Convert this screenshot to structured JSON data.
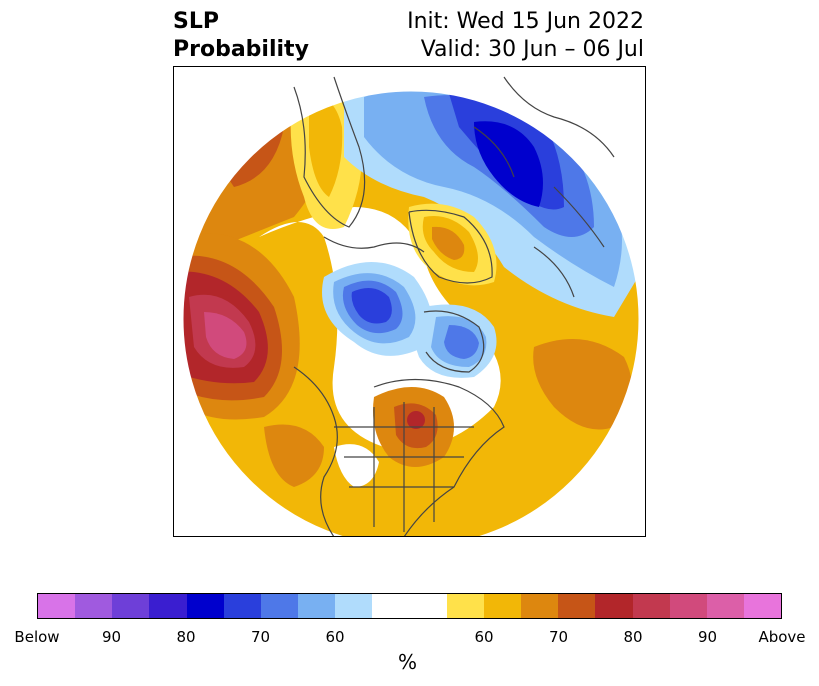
{
  "title": {
    "left_line1": "SLP",
    "left_line2": "Probability",
    "right_line1": "Init: Wed 15 Jun 2022",
    "right_line2": "Valid: 30 Jun – 06 Jul"
  },
  "colorbar": {
    "unit": "%",
    "colors": [
      "#d873e8",
      "#a05adf",
      "#6e3fd8",
      "#3a1ed0",
      "#0000cd",
      "#2a3fdc",
      "#4e78e8",
      "#78b0f2",
      "#b0dcfc",
      "#ffffff",
      "#ffffff",
      "#ffe14a",
      "#f2b707",
      "#dd870f",
      "#c65517",
      "#b2262a",
      "#c2394f",
      "#d14a7c",
      "#dc5fa8",
      "#e874dc"
    ],
    "tick_labels": [
      "Below",
      "90",
      "80",
      "70",
      "60",
      "60",
      "70",
      "80",
      "90",
      "Above"
    ]
  }
}
